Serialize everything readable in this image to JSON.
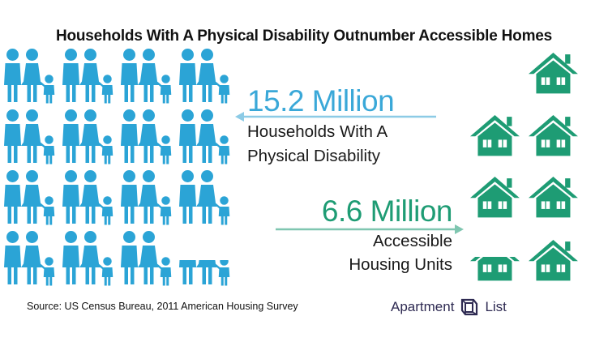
{
  "title": "Households With A Physical Disability Outnumber Accessible Homes",
  "stats": {
    "households": {
      "value_label": "15.2 Million",
      "description_line1": "Households With A",
      "description_line2": "Physical Disability"
    },
    "accessible": {
      "value_label": "6.6 Million",
      "description_line1": "Accessible",
      "description_line2": "Housing Units"
    }
  },
  "source": "Source: US Census Bureau, 2011 American Housing Survey",
  "logo": {
    "left_text": "Apartment",
    "right_text": "List"
  },
  "colors": {
    "family": "#2ba4d6",
    "house": "#1e9c74",
    "arrow_blue": "#8ccbe6",
    "arrow_green": "#7fc6b0",
    "logo": "#2e2a52"
  },
  "chart_data": {
    "type": "pictogram",
    "title": "Households With A Physical Disability Outnumber Accessible Homes",
    "unit": "households (millions)",
    "series": [
      {
        "name": "Households With A Physical Disability",
        "value": 15.2,
        "icon": "family-icon"
      },
      {
        "name": "Accessible Housing Units",
        "value": 6.6,
        "icon": "house-icon"
      }
    ],
    "icon_value_millions": 1,
    "source": "Source: US Census Bureau, 2011 American Housing Survey"
  }
}
